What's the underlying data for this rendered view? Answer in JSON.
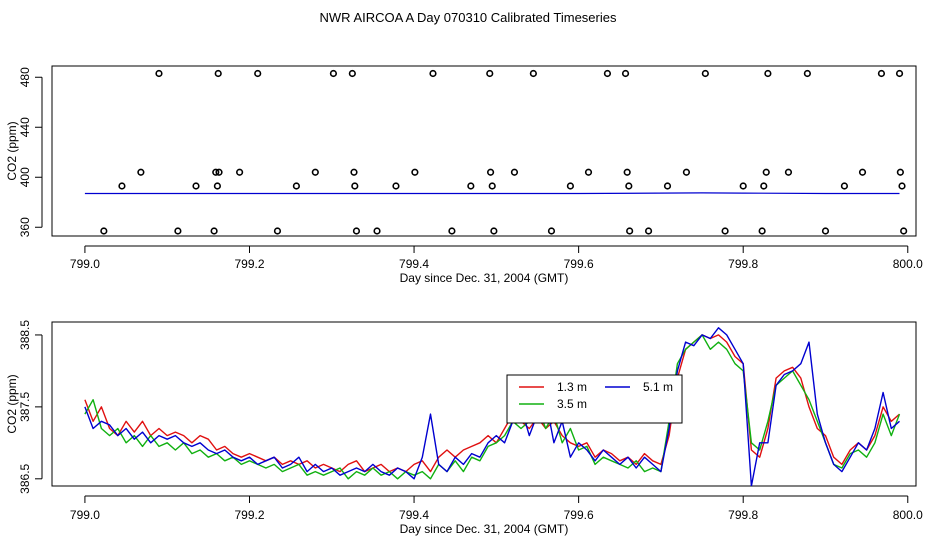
{
  "title": "NWR AIRCOA A  Day 070310  Calibrated Timeseries",
  "colors": {
    "red": "#e01010",
    "green": "#10b010",
    "blue": "#0000d0",
    "black": "#000000"
  },
  "chart_data": [
    {
      "type": "scatter",
      "title": "",
      "xlabel": "Day since Dec. 31, 2004 (GMT)",
      "ylabel": "CO2 (ppm)",
      "xlim": [
        798.96,
        800.01
      ],
      "ylim": [
        353,
        489
      ],
      "xticks": [
        799.0,
        799.2,
        799.4,
        799.6,
        799.8,
        800.0
      ],
      "xtick_labels": [
        "799.0",
        "799.2",
        "799.4",
        "799.6",
        "799.8",
        "800.0"
      ],
      "yticks": [
        360,
        400,
        440,
        480
      ],
      "ytick_labels": [
        "360",
        "400",
        "440",
        "480"
      ],
      "grid": false,
      "baseline": {
        "x": [
          799.0,
          799.2,
          799.4,
          799.5,
          799.6,
          799.75,
          799.8,
          799.9,
          799.99
        ],
        "y": [
          387,
          387,
          387,
          387,
          387,
          387.5,
          387.3,
          387,
          387
        ]
      },
      "points": {
        "x": [
          799.023,
          799.045,
          799.068,
          799.09,
          799.113,
          799.135,
          799.157,
          799.159,
          799.161,
          799.162,
          799.163,
          799.188,
          799.21,
          799.234,
          799.257,
          799.28,
          799.302,
          799.325,
          799.327,
          799.328,
          799.33,
          799.355,
          799.378,
          799.401,
          799.423,
          799.446,
          799.469,
          799.492,
          799.493,
          799.495,
          799.497,
          799.522,
          799.545,
          799.567,
          799.59,
          799.612,
          799.635,
          799.657,
          799.659,
          799.661,
          799.662,
          799.685,
          799.708,
          799.731,
          799.754,
          799.778,
          799.8,
          799.823,
          799.825,
          799.828,
          799.83,
          799.855,
          799.878,
          799.9,
          799.923,
          799.945,
          799.968,
          799.99,
          799.991,
          799.993,
          799.995
        ],
        "y": [
          357,
          393,
          404,
          483,
          357,
          393,
          357,
          404,
          393,
          483,
          404,
          404,
          483,
          357,
          393,
          404,
          483,
          483,
          404,
          393,
          357,
          357,
          393,
          404,
          483,
          357,
          393,
          483,
          404,
          393,
          357,
          404,
          483,
          357,
          393,
          404,
          483,
          483,
          404,
          393,
          357,
          357,
          393,
          404,
          483,
          357,
          393,
          357,
          393,
          404,
          483,
          404,
          483,
          357,
          393,
          404,
          483,
          483,
          404,
          393,
          357
        ]
      }
    },
    {
      "type": "line",
      "title": "",
      "xlabel": "Day since Dec. 31, 2004 (GMT)",
      "ylabel": "CO2 (ppm)",
      "xlim": [
        798.96,
        800.01
      ],
      "ylim": [
        386.4,
        388.68
      ],
      "xticks": [
        799.0,
        799.2,
        799.4,
        799.6,
        799.8,
        800.0
      ],
      "xtick_labels": [
        "799.0",
        "799.2",
        "799.4",
        "799.6",
        "799.8",
        "800.0"
      ],
      "yticks": [
        386.5,
        387.5,
        388.5
      ],
      "ytick_labels": [
        "386.5",
        "387.5",
        "388.5"
      ],
      "grid": false,
      "legend": {
        "placement": "center",
        "entries": [
          "1.3 m",
          "5.1 m",
          "3.5 m"
        ]
      },
      "series": [
        {
          "name": "1.3 m",
          "color": "#e01010",
          "x": [
            799.0,
            799.01,
            799.02,
            799.03,
            799.04,
            799.05,
            799.06,
            799.07,
            799.08,
            799.09,
            799.1,
            799.11,
            799.12,
            799.13,
            799.14,
            799.15,
            799.16,
            799.17,
            799.18,
            799.19,
            799.2,
            799.21,
            799.22,
            799.23,
            799.24,
            799.25,
            799.26,
            799.27,
            799.28,
            799.29,
            799.3,
            799.31,
            799.32,
            799.33,
            799.34,
            799.35,
            799.36,
            799.37,
            799.38,
            799.39,
            799.4,
            799.41,
            799.42,
            799.43,
            799.44,
            799.45,
            799.46,
            799.47,
            799.48,
            799.49,
            799.5,
            799.51,
            799.52,
            799.53,
            799.54,
            799.55,
            799.56,
            799.57,
            799.58,
            799.59,
            799.6,
            799.61,
            799.62,
            799.63,
            799.64,
            799.65,
            799.66,
            799.67,
            799.68,
            799.69,
            799.7,
            799.71,
            799.72,
            799.73,
            799.74,
            799.75,
            799.76,
            799.77,
            799.78,
            799.79,
            799.8,
            799.81,
            799.82,
            799.83,
            799.84,
            799.85,
            799.86,
            799.87,
            799.88,
            799.89,
            799.9,
            799.91,
            799.92,
            799.93,
            799.94,
            799.95,
            799.96,
            799.97,
            799.98,
            799.99
          ],
          "y": [
            387.6,
            387.3,
            387.5,
            387.2,
            387.1,
            387.3,
            387.15,
            387.3,
            387.1,
            387.2,
            387.1,
            387.15,
            387.1,
            387.0,
            387.1,
            387.05,
            386.9,
            386.95,
            386.85,
            386.8,
            386.85,
            386.8,
            386.75,
            386.8,
            386.7,
            386.75,
            386.7,
            386.75,
            386.65,
            386.7,
            386.65,
            386.6,
            386.7,
            386.75,
            386.6,
            386.65,
            386.7,
            386.6,
            386.65,
            386.6,
            386.7,
            386.75,
            386.6,
            386.8,
            386.9,
            386.8,
            386.9,
            386.95,
            387.0,
            387.1,
            387.0,
            387.2,
            387.4,
            387.3,
            387.2,
            387.35,
            387.2,
            387.3,
            387.1,
            387.0,
            386.95,
            387.0,
            386.8,
            386.9,
            386.85,
            386.75,
            386.8,
            386.7,
            386.85,
            386.75,
            386.7,
            387.1,
            387.9,
            388.3,
            388.4,
            388.5,
            388.45,
            388.5,
            388.4,
            388.2,
            388.1,
            386.9,
            386.8,
            387.2,
            387.9,
            388.0,
            388.05,
            387.9,
            387.5,
            387.2,
            387.1,
            386.8,
            386.7,
            386.9,
            387.0,
            386.9,
            387.1,
            387.5,
            387.3,
            387.4
          ]
        },
        {
          "name": "5.1 m",
          "color": "#0000d0",
          "x": [
            799.0,
            799.01,
            799.02,
            799.03,
            799.04,
            799.05,
            799.06,
            799.07,
            799.08,
            799.09,
            799.1,
            799.11,
            799.12,
            799.13,
            799.14,
            799.15,
            799.16,
            799.17,
            799.18,
            799.19,
            799.2,
            799.21,
            799.22,
            799.23,
            799.24,
            799.25,
            799.26,
            799.27,
            799.28,
            799.29,
            799.3,
            799.31,
            799.32,
            799.33,
            799.34,
            799.35,
            799.36,
            799.37,
            799.38,
            799.39,
            799.4,
            799.41,
            799.42,
            799.43,
            799.44,
            799.45,
            799.46,
            799.47,
            799.48,
            799.49,
            799.5,
            799.51,
            799.52,
            799.53,
            799.54,
            799.55,
            799.56,
            799.57,
            799.58,
            799.59,
            799.6,
            799.61,
            799.62,
            799.63,
            799.64,
            799.65,
            799.66,
            799.67,
            799.68,
            799.69,
            799.7,
            799.71,
            799.72,
            799.73,
            799.74,
            799.75,
            799.76,
            799.77,
            799.78,
            799.79,
            799.8,
            799.81,
            799.82,
            799.83,
            799.84,
            799.85,
            799.86,
            799.87,
            799.88,
            799.89,
            799.9,
            799.91,
            799.92,
            799.93,
            799.94,
            799.95,
            799.96,
            799.97,
            799.98,
            799.99
          ],
          "y": [
            387.5,
            387.2,
            387.3,
            387.25,
            387.1,
            387.2,
            387.05,
            387.15,
            387.0,
            387.1,
            387.05,
            387.1,
            387.0,
            386.95,
            387.0,
            386.9,
            386.85,
            386.9,
            386.8,
            386.75,
            386.8,
            386.7,
            386.75,
            386.8,
            386.65,
            386.7,
            386.8,
            386.6,
            386.7,
            386.6,
            386.65,
            386.55,
            386.6,
            386.65,
            386.6,
            386.7,
            386.6,
            386.55,
            386.65,
            386.6,
            386.5,
            386.8,
            387.4,
            386.7,
            386.6,
            386.8,
            386.7,
            386.85,
            386.8,
            387.0,
            387.1,
            387.0,
            387.3,
            387.5,
            387.1,
            387.4,
            387.6,
            387.0,
            387.3,
            386.8,
            387.0,
            386.9,
            386.75,
            386.9,
            386.8,
            386.7,
            386.8,
            386.65,
            386.8,
            386.7,
            386.6,
            387.2,
            388.0,
            388.4,
            388.35,
            388.5,
            388.45,
            388.6,
            388.5,
            388.3,
            388.1,
            386.4,
            387.0,
            387.0,
            387.8,
            387.95,
            388.0,
            388.1,
            388.4,
            387.4,
            387.0,
            386.7,
            386.6,
            386.8,
            387.0,
            386.9,
            387.2,
            387.7,
            387.2,
            387.3
          ]
        },
        {
          "name": "3.5 m",
          "color": "#10b010",
          "x": [
            799.0,
            799.01,
            799.02,
            799.03,
            799.04,
            799.05,
            799.06,
            799.07,
            799.08,
            799.09,
            799.1,
            799.11,
            799.12,
            799.13,
            799.14,
            799.15,
            799.16,
            799.17,
            799.18,
            799.19,
            799.2,
            799.21,
            799.22,
            799.23,
            799.24,
            799.25,
            799.26,
            799.27,
            799.28,
            799.29,
            799.3,
            799.31,
            799.32,
            799.33,
            799.34,
            799.35,
            799.36,
            799.37,
            799.38,
            799.39,
            799.4,
            799.41,
            799.42,
            799.43,
            799.44,
            799.45,
            799.46,
            799.47,
            799.48,
            799.49,
            799.5,
            799.51,
            799.52,
            799.53,
            799.54,
            799.55,
            799.56,
            799.57,
            799.58,
            799.59,
            799.6,
            799.61,
            799.62,
            799.63,
            799.64,
            799.65,
            799.66,
            799.67,
            799.68,
            799.69,
            799.7,
            799.71,
            799.72,
            799.73,
            799.74,
            799.75,
            799.76,
            799.77,
            799.78,
            799.79,
            799.8,
            799.81,
            799.82,
            799.83,
            799.84,
            799.85,
            799.86,
            799.87,
            799.88,
            799.89,
            799.9,
            799.91,
            799.92,
            799.93,
            799.94,
            799.95,
            799.96,
            799.97,
            799.98,
            799.99
          ],
          "y": [
            387.4,
            387.6,
            387.2,
            387.1,
            387.2,
            387.0,
            387.1,
            386.95,
            387.1,
            386.95,
            387.0,
            386.9,
            387.0,
            386.85,
            386.9,
            386.8,
            386.85,
            386.75,
            386.8,
            386.7,
            386.75,
            386.7,
            386.65,
            386.7,
            386.6,
            386.65,
            386.7,
            386.55,
            386.6,
            386.55,
            386.6,
            386.65,
            386.5,
            386.6,
            386.55,
            386.65,
            386.55,
            386.6,
            386.5,
            386.6,
            386.55,
            386.6,
            386.5,
            386.7,
            386.6,
            386.75,
            386.6,
            386.8,
            386.75,
            386.95,
            387.0,
            387.1,
            387.3,
            387.2,
            387.3,
            387.5,
            387.2,
            387.4,
            387.0,
            387.2,
            386.9,
            386.95,
            386.7,
            386.8,
            386.75,
            386.7,
            386.65,
            386.75,
            386.6,
            386.65,
            386.6,
            387.3,
            388.1,
            388.3,
            388.4,
            388.5,
            388.3,
            388.4,
            388.3,
            388.1,
            388.0,
            387.0,
            386.9,
            387.3,
            387.8,
            387.9,
            388.0,
            387.8,
            387.6,
            387.3,
            387.0,
            386.7,
            386.65,
            386.85,
            386.9,
            386.8,
            387.0,
            387.4,
            387.1,
            387.4
          ]
        }
      ]
    }
  ]
}
